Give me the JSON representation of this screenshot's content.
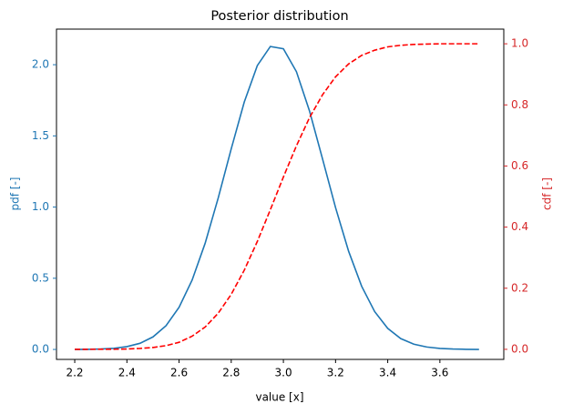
{
  "chart_data": {
    "type": "line",
    "title": "Posterior distribution",
    "x_label": "value [x]",
    "y_label": "pdf [-]",
    "y2_label": "cdf [-]",
    "x": [
      2.2,
      2.25,
      2.3,
      2.35,
      2.4,
      2.45,
      2.5,
      2.55,
      2.6,
      2.65,
      2.7,
      2.75,
      2.8,
      2.85,
      2.9,
      2.95,
      3.0,
      3.05,
      3.1,
      3.15,
      3.2,
      3.25,
      3.3,
      3.35,
      3.4,
      3.45,
      3.5,
      3.55,
      3.6,
      3.65,
      3.7,
      3.75
    ],
    "series": [
      {
        "name": "pdf",
        "color": "#1f77b4",
        "linestyle": "solid",
        "axis": "y",
        "values": [
          0.0,
          0.001,
          0.003,
          0.008,
          0.02,
          0.043,
          0.088,
          0.167,
          0.296,
          0.487,
          0.746,
          1.063,
          1.409,
          1.738,
          1.994,
          2.128,
          2.112,
          1.951,
          1.676,
          1.339,
          0.996,
          0.69,
          0.444,
          0.266,
          0.148,
          0.076,
          0.037,
          0.017,
          0.007,
          0.003,
          0.001,
          0.0
        ]
      },
      {
        "name": "cdf",
        "color": "#ff0000",
        "linestyle": "dashed",
        "axis": "y2",
        "values": [
          0.0,
          0.0001,
          0.0002,
          0.0004,
          0.001,
          0.003,
          0.006,
          0.012,
          0.023,
          0.043,
          0.073,
          0.118,
          0.18,
          0.259,
          0.353,
          0.457,
          0.564,
          0.666,
          0.758,
          0.833,
          0.892,
          0.934,
          0.962,
          0.979,
          0.99,
          0.995,
          0.998,
          0.999,
          1.0,
          1.0,
          1.0,
          1.0
        ]
      }
    ],
    "xlim": [
      2.13,
      3.845
    ],
    "xticks": [
      2.2,
      2.4,
      2.6,
      2.8,
      {
        "value": 3,
        "label": "3.0"
      },
      3.2,
      3.4,
      3.6
    ],
    "ylim": [
      -0.07,
      2.25
    ],
    "yticks": [
      {
        "value": 0,
        "label": "0.0"
      },
      0.5,
      {
        "value": 1,
        "label": "1.0"
      },
      1.5,
      {
        "value": 2,
        "label": "2.0"
      }
    ],
    "y2lim": [
      -0.033,
      1.048
    ],
    "y2ticks": [
      {
        "value": 0,
        "label": "0.0"
      },
      0.2,
      0.4,
      0.6,
      0.8,
      {
        "value": 1,
        "label": "1.0"
      }
    ],
    "grid": false
  }
}
